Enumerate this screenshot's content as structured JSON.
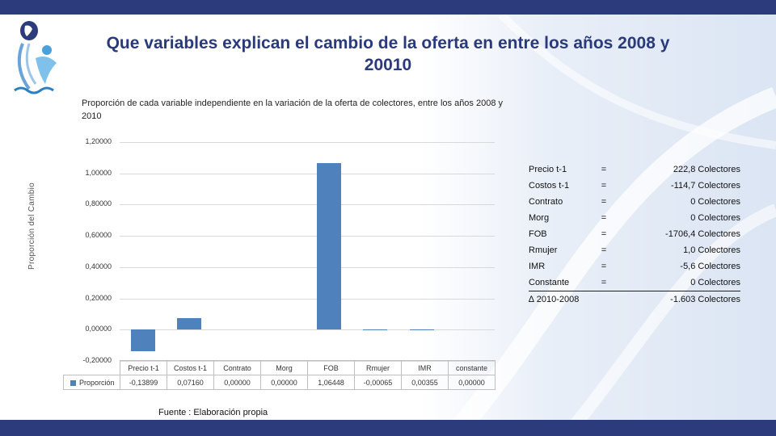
{
  "title": "Que variables explican el cambio de la oferta  en entre los años 2008 y 20010",
  "footer": {
    "source": "Fuente :   Elaboración propia"
  },
  "colors": {
    "band": "#2c3b7c",
    "title": "#2a3a7a",
    "bar": "#4f81bd"
  },
  "chart_data": {
    "type": "bar",
    "title": "Proporción de cada variable independiente en la variación de la oferta de colectores, entre los años 2008  y 2010",
    "ylabel": "Proporción   del Cambio",
    "xlabel": "",
    "categories": [
      "Precio t-1",
      "Costos t-1",
      "Contrato",
      "Morg",
      "FOB",
      "Rmujer",
      "IMR",
      "constante"
    ],
    "series": [
      {
        "name": "Proporción",
        "values": [
          -0.13899,
          0.0716,
          0.0,
          0.0,
          1.06448,
          -0.00065,
          0.00355,
          0.0
        ],
        "labels": [
          "-0,13899",
          "0,07160",
          "0,00000",
          "0,00000",
          "1,06448",
          "-0,00065",
          "0,00355",
          "0,00000"
        ]
      }
    ],
    "ylim": [
      -0.2,
      1.2
    ],
    "yticks": [
      "1,20000",
      "1,00000",
      "0,80000",
      "0,60000",
      "0,40000",
      "0,20000",
      "0,00000",
      "-0,20000"
    ],
    "ytick_values": [
      1.2,
      1.0,
      0.8,
      0.6,
      0.4,
      0.2,
      0.0,
      -0.2
    ],
    "grid": true,
    "legend": "in data table"
  },
  "decomposition": {
    "rows": [
      {
        "label": "Precio t-1",
        "eq": "=",
        "value": "222,8 Colectores"
      },
      {
        "label": "Costos t-1",
        "eq": "=",
        "value": "-114,7 Colectores"
      },
      {
        "label": "Contrato",
        "eq": "=",
        "value": "0 Colectores"
      },
      {
        "label": "Morg",
        "eq": "=",
        "value": "0 Colectores"
      },
      {
        "label": "FOB",
        "eq": "=",
        "value": "-1706,4 Colectores"
      },
      {
        "label": "Rmujer",
        "eq": "=",
        "value": "1,0 Colectores"
      },
      {
        "label": "IMR",
        "eq": "=",
        "value": "-5,6 Colectores"
      },
      {
        "label": "Constante",
        "eq": "=",
        "value": "0 Colectores"
      }
    ],
    "total": {
      "label": "∆ 2010-2008",
      "value": "-1.603 Colectores"
    }
  }
}
